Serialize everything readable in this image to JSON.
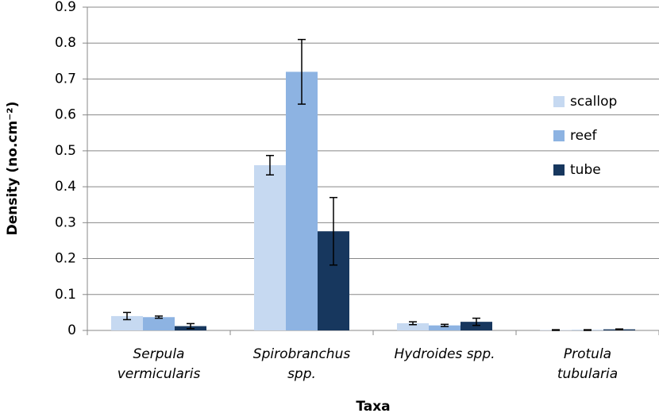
{
  "chart_data": {
    "type": "bar",
    "x_label": "Taxa",
    "y_label": "Density (no.cm⁻²)",
    "categories": [
      "Serpula vermicularis",
      "Spirobranchus spp.",
      "Hydroides spp.",
      "Protula tubularia"
    ],
    "series": [
      {
        "name": "scallop",
        "color": "#c6d9f1",
        "values": [
          0.04,
          0.46,
          0.02,
          0.001
        ],
        "errors": [
          0.01,
          0.027,
          0.004,
          0.001
        ]
      },
      {
        "name": "reef",
        "color": "#8db3e2",
        "values": [
          0.037,
          0.72,
          0.014,
          0.001
        ],
        "errors": [
          0.003,
          0.09,
          0.003,
          0.001
        ]
      },
      {
        "name": "tube",
        "color": "#17375e",
        "values": [
          0.012,
          0.276,
          0.024,
          0.003
        ],
        "errors": [
          0.007,
          0.094,
          0.01,
          0.001
        ]
      }
    ],
    "ylim": [
      0,
      0.9
    ],
    "yticks": [
      0,
      0.1,
      0.2,
      0.3,
      0.4,
      0.5,
      0.6,
      0.7,
      0.8,
      0.9
    ],
    "grid": true,
    "legend": "right"
  }
}
